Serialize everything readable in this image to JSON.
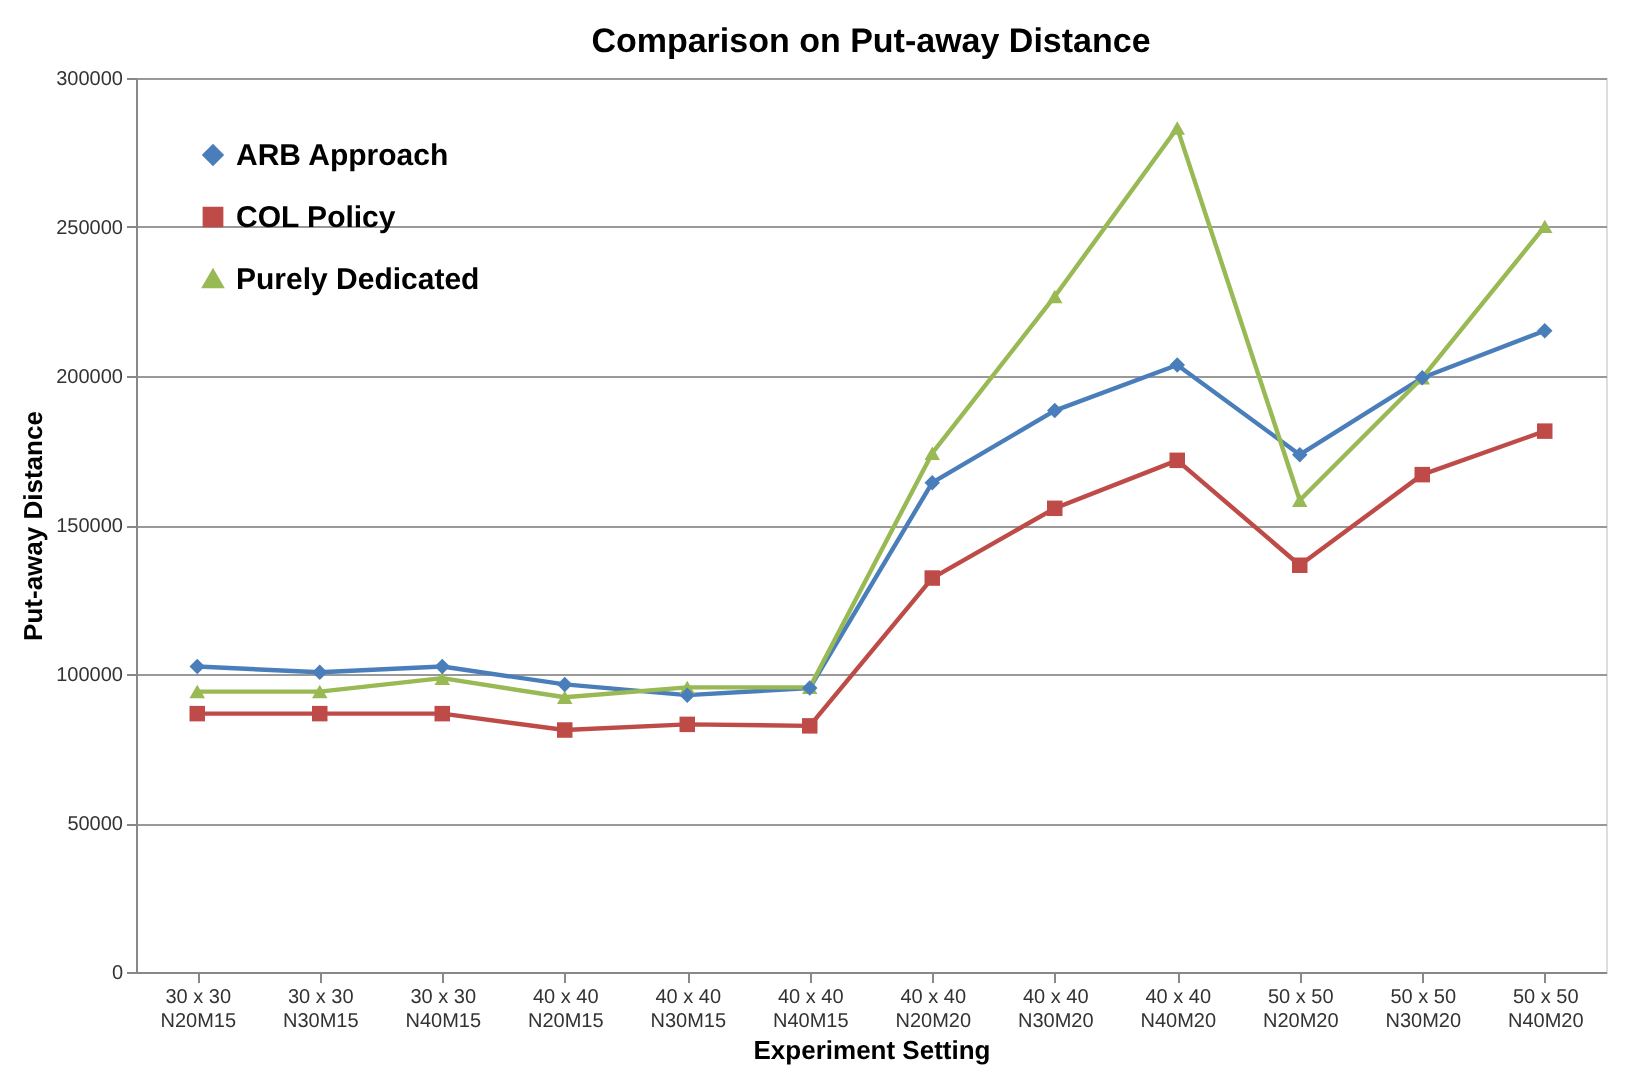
{
  "chart_data": {
    "type": "line",
    "title": "Comparison on Put-away Distance",
    "xlabel": "Experiment Setting",
    "ylabel": "Put-away Distance",
    "categories": [
      "30 x 30\nN20M15",
      "30 x 30\nN30M15",
      "30 x 30\nN40M15",
      "40 x 40\nN20M15",
      "40 x 40\nN30M15",
      "40 x 40\nN40M15",
      "40 x 40\nN20M20",
      "40 x 40\nN30M20",
      "40 x 40\nN40M20",
      "50 x 50\nN20M20",
      "50 x 50\nN30M20",
      "50 x 50\nN40M20"
    ],
    "series": [
      {
        "name": "ARB Approach",
        "color": "#4a7ebb",
        "marker": "diamond",
        "values": [
          102500,
          100600,
          102500,
          96500,
          92900,
          95300,
          164200,
          188400,
          203700,
          173600,
          199400,
          215200
        ]
      },
      {
        "name": "COL Policy",
        "color": "#be4b48",
        "marker": "square",
        "values": [
          86700,
          86700,
          86700,
          81200,
          83100,
          82600,
          132200,
          155600,
          171700,
          136500,
          166900,
          181500
        ]
      },
      {
        "name": "Purely Dedicated",
        "color": "#98b954",
        "marker": "triangle",
        "values": [
          94100,
          94100,
          98600,
          92200,
          95500,
          95500,
          174100,
          226700,
          283200,
          158300,
          199400,
          250200
        ]
      }
    ],
    "ylim": [
      0,
      300000
    ],
    "yticks": [
      0,
      50000,
      100000,
      150000,
      200000,
      250000,
      300000
    ],
    "grid": "y",
    "legend": "top left",
    "line_style": "solid"
  }
}
